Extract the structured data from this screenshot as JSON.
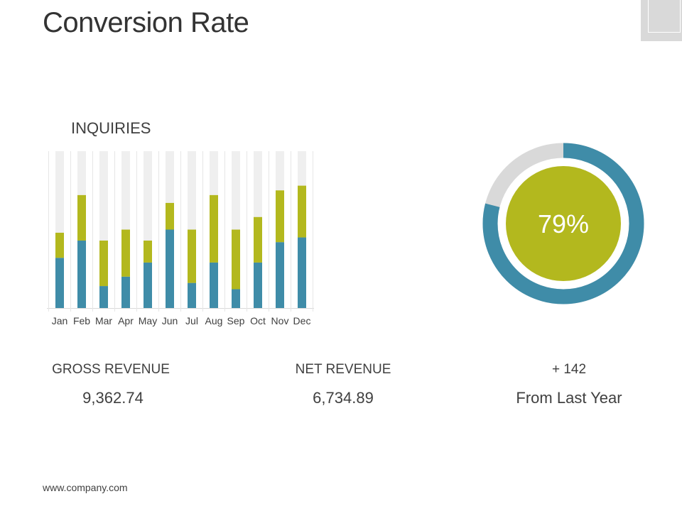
{
  "page": {
    "title": "Conversion Rate",
    "footer_url": "www.company.com"
  },
  "colors": {
    "blue": "#3f8ca8",
    "green": "#b3b81e",
    "track": "#efefef",
    "donut_track": "#d9d9d9"
  },
  "chart_data": [
    {
      "type": "bar",
      "stacked": true,
      "title": "INQUIRIES",
      "categories": [
        "Jan",
        "Feb",
        "Mar",
        "Apr",
        "May",
        "Jun",
        "Jul",
        "Aug",
        "Sep",
        "Oct",
        "Nov",
        "Dec"
      ],
      "series": [
        {
          "name": "Blue",
          "values": [
            32,
            43,
            14,
            20,
            29,
            50,
            16,
            29,
            12,
            29,
            42,
            45
          ]
        },
        {
          "name": "Green",
          "values": [
            16,
            29,
            29,
            30,
            14,
            17,
            34,
            43,
            38,
            29,
            33,
            33
          ]
        }
      ],
      "ylim": [
        0,
        100
      ],
      "grid": false
    },
    {
      "type": "pie",
      "title": "",
      "value": 79,
      "label": "79%"
    }
  ],
  "stats": {
    "gross": {
      "label": "GROSS REVENUE",
      "value": "9,362.74"
    },
    "net": {
      "label": "NET REVENUE",
      "value": "6,734.89"
    },
    "change": {
      "label": "+ 142",
      "value": "From Last Year"
    }
  }
}
